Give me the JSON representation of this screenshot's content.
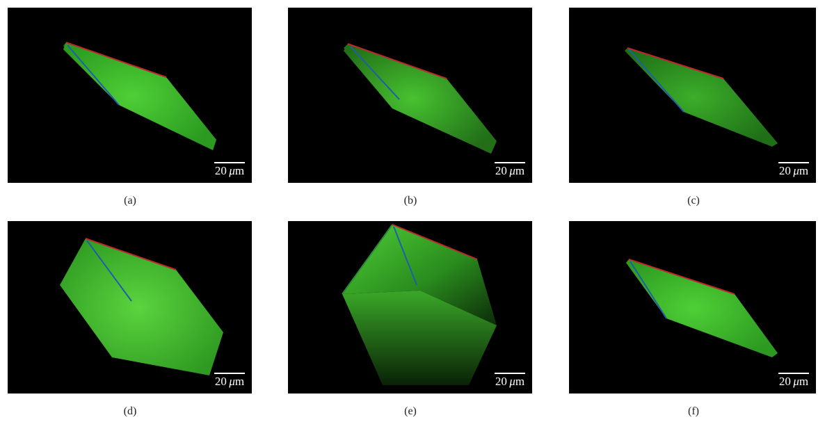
{
  "panels": [
    {
      "id": "a",
      "caption": "(a)",
      "scale_value": "20",
      "scale_unit": "m",
      "scale_mu": "μ"
    },
    {
      "id": "b",
      "caption": "(b)",
      "scale_value": "20",
      "scale_unit": "m",
      "scale_mu": "μ"
    },
    {
      "id": "c",
      "caption": "(c)",
      "scale_value": "20",
      "scale_unit": "m",
      "scale_mu": "μ"
    },
    {
      "id": "d",
      "caption": "(d)",
      "scale_value": "20",
      "scale_unit": "m",
      "scale_mu": "μ"
    },
    {
      "id": "e",
      "caption": "(e)",
      "scale_value": "20",
      "scale_unit": "m",
      "scale_mu": "μ"
    },
    {
      "id": "f",
      "caption": "(f)",
      "scale_value": "20",
      "scale_unit": "m",
      "scale_mu": "μ"
    }
  ],
  "colors": {
    "background": "#000000",
    "fluorescence": "#3fbf2a",
    "axis_x": "#c0262c",
    "axis_y": "#1f5fa8",
    "axis_z": "#2a8a3a"
  }
}
